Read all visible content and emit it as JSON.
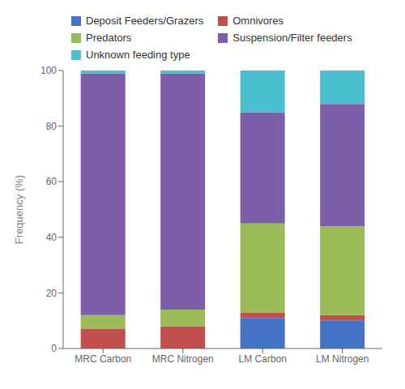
{
  "chart_data": {
    "type": "bar",
    "stacked": true,
    "categories": [
      "MRC Carbon",
      "MRC Nitrogen",
      "LM Carbon",
      "LM Nitrogen"
    ],
    "series": [
      {
        "name": "Deposit Feeders/Grazers",
        "color": "#4472C4",
        "values": [
          0,
          0,
          11,
          10
        ]
      },
      {
        "name": "Omnivores",
        "color": "#C0504D",
        "values": [
          7,
          8,
          2,
          2
        ]
      },
      {
        "name": "Predators",
        "color": "#9BBB59",
        "values": [
          5,
          6,
          32,
          32
        ]
      },
      {
        "name": "Suspension/Filter feeders",
        "color": "#7E5EA8",
        "values": [
          87,
          85,
          40,
          44
        ]
      },
      {
        "name": "Unknown feeding type",
        "color": "#4ABFCF",
        "values": [
          1,
          1,
          15,
          12
        ]
      }
    ],
    "ylabel": "Frequency (%)",
    "ylim": [
      0,
      100
    ],
    "yticks": [
      0,
      20,
      40,
      60,
      80,
      100
    ],
    "grid": false,
    "legend": "upper left"
  }
}
